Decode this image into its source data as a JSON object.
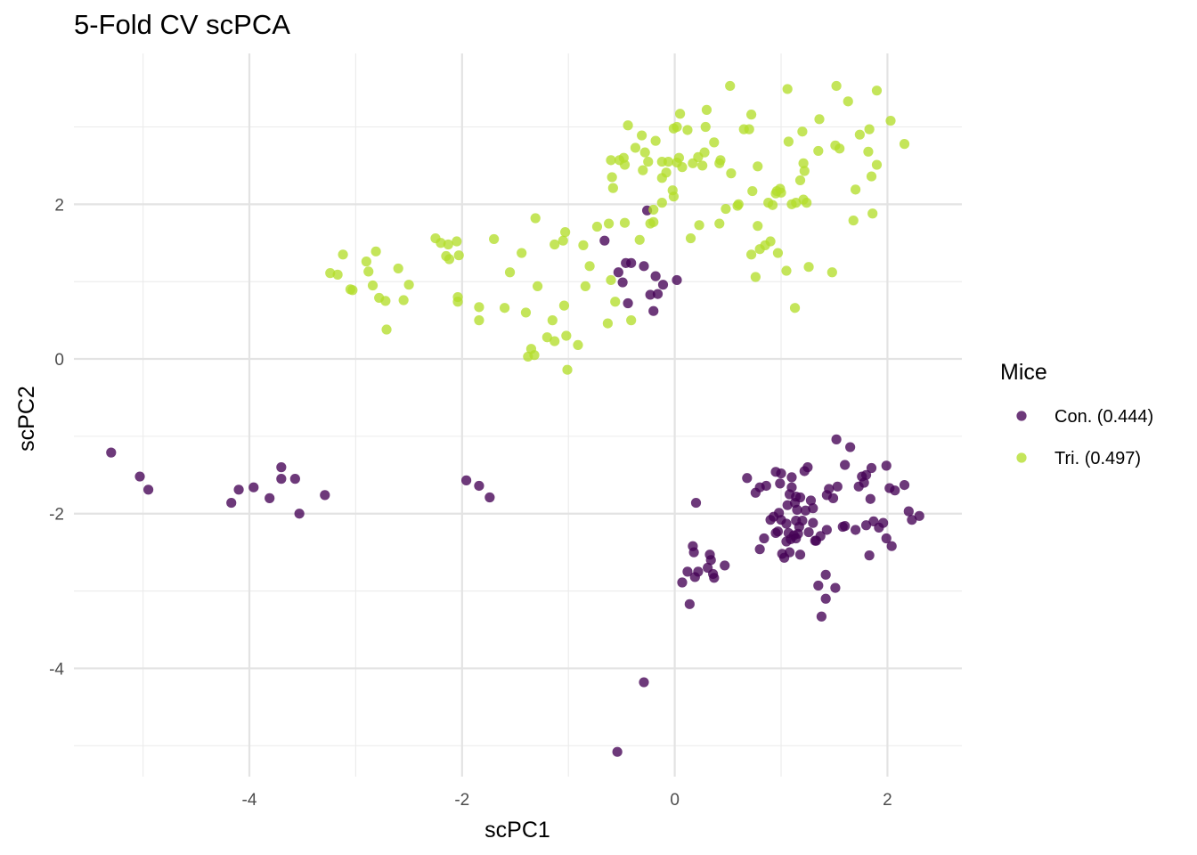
{
  "chart_data": {
    "type": "scatter",
    "title": "5-Fold CV scPCA",
    "xlabel": "scPC1",
    "ylabel": "scPC2",
    "xlim": [
      -5.65,
      2.7
    ],
    "ylim": [
      -5.4,
      3.95
    ],
    "x_ticks": [
      -4,
      -2,
      0,
      2
    ],
    "y_ticks": [
      -4,
      -2,
      0,
      2
    ],
    "x_tick_labels": [
      "-4",
      "-2",
      "0",
      "2"
    ],
    "y_tick_labels": [
      "-4",
      "-2",
      "0",
      "2"
    ],
    "grid": true,
    "legend": {
      "title": "Mice",
      "position": "right"
    },
    "series": [
      {
        "name": "Con. (0.444)",
        "color": "#440154",
        "points": [
          [
            -5.3,
            -1.21
          ],
          [
            -5.03,
            -1.52
          ],
          [
            -4.95,
            -1.69
          ],
          [
            -4.17,
            -1.86
          ],
          [
            -4.1,
            -1.69
          ],
          [
            -3.96,
            -1.66
          ],
          [
            -3.81,
            -1.8
          ],
          [
            -3.7,
            -1.4
          ],
          [
            -3.7,
            -1.55
          ],
          [
            -3.57,
            -1.55
          ],
          [
            -3.53,
            -2.0
          ],
          [
            -3.29,
            -1.76
          ],
          [
            -1.96,
            -1.57
          ],
          [
            -1.84,
            -1.64
          ],
          [
            -1.74,
            -1.79
          ],
          [
            -0.66,
            1.53
          ],
          [
            -0.53,
            1.12
          ],
          [
            -0.49,
            0.99
          ],
          [
            -0.46,
            1.24
          ],
          [
            -0.44,
            0.72
          ],
          [
            -0.41,
            1.24
          ],
          [
            -0.29,
            1.2
          ],
          [
            -0.26,
            1.92
          ],
          [
            -0.23,
            0.83
          ],
          [
            -0.2,
            0.62
          ],
          [
            -0.18,
            1.07
          ],
          [
            -0.16,
            0.84
          ],
          [
            -0.11,
            0.96
          ],
          [
            0.02,
            1.02
          ],
          [
            -0.54,
            -5.08
          ],
          [
            -0.29,
            -4.18
          ],
          [
            0.07,
            -2.89
          ],
          [
            0.12,
            -2.75
          ],
          [
            0.14,
            -3.17
          ],
          [
            0.17,
            -2.42
          ],
          [
            0.18,
            -2.5
          ],
          [
            0.19,
            -2.82
          ],
          [
            0.2,
            -1.86
          ],
          [
            0.22,
            -2.75
          ],
          [
            0.31,
            -2.7
          ],
          [
            0.33,
            -2.53
          ],
          [
            0.34,
            -2.6
          ],
          [
            0.36,
            -2.78
          ],
          [
            0.37,
            -2.83
          ],
          [
            0.47,
            -2.67
          ],
          [
            0.68,
            -1.54
          ],
          [
            0.76,
            -1.73
          ],
          [
            0.8,
            -1.66
          ],
          [
            0.8,
            -2.46
          ],
          [
            0.84,
            -2.32
          ],
          [
            0.86,
            -1.64
          ],
          [
            0.9,
            -2.08
          ],
          [
            0.93,
            -2.04
          ],
          [
            0.95,
            -2.25
          ],
          [
            0.95,
            -1.46
          ],
          [
            0.97,
            -2.23
          ],
          [
            0.98,
            -1.99
          ],
          [
            0.99,
            -1.61
          ],
          [
            1.0,
            -2.08
          ],
          [
            1.0,
            -1.48
          ],
          [
            1.01,
            -2.52
          ],
          [
            1.03,
            -2.57
          ],
          [
            1.05,
            -2.13
          ],
          [
            1.05,
            -2.36
          ],
          [
            1.06,
            -1.89
          ],
          [
            1.07,
            -2.25
          ],
          [
            1.08,
            -2.5
          ],
          [
            1.08,
            -1.75
          ],
          [
            1.09,
            -2.33
          ],
          [
            1.1,
            -1.53
          ],
          [
            1.1,
            -1.66
          ],
          [
            1.12,
            -2.28
          ],
          [
            1.13,
            -1.86
          ],
          [
            1.14,
            -1.78
          ],
          [
            1.14,
            -2.09
          ],
          [
            1.14,
            -2.32
          ],
          [
            1.15,
            -1.95
          ],
          [
            1.16,
            -2.26
          ],
          [
            1.17,
            -2.17
          ],
          [
            1.18,
            -1.79
          ],
          [
            1.18,
            -2.53
          ],
          [
            1.2,
            -2.09
          ],
          [
            1.22,
            -1.45
          ],
          [
            1.23,
            -1.96
          ],
          [
            1.25,
            -1.4
          ],
          [
            1.26,
            -2.24
          ],
          [
            1.28,
            -1.83
          ],
          [
            1.3,
            -2.12
          ],
          [
            1.3,
            -1.93
          ],
          [
            1.32,
            -2.35
          ],
          [
            1.33,
            -2.35
          ],
          [
            1.35,
            -2.93
          ],
          [
            1.37,
            -2.29
          ],
          [
            1.38,
            -3.33
          ],
          [
            1.42,
            -3.1
          ],
          [
            1.42,
            -2.79
          ],
          [
            1.43,
            -2.21
          ],
          [
            1.43,
            -1.76
          ],
          [
            1.45,
            -1.68
          ],
          [
            1.49,
            -1.8
          ],
          [
            1.51,
            -2.96
          ],
          [
            1.52,
            -1.04
          ],
          [
            1.53,
            -1.65
          ],
          [
            1.58,
            -2.17
          ],
          [
            1.6,
            -2.16
          ],
          [
            1.6,
            -1.37
          ],
          [
            1.65,
            -1.14
          ],
          [
            1.7,
            -2.21
          ],
          [
            1.73,
            -1.65
          ],
          [
            1.76,
            -1.52
          ],
          [
            1.78,
            -1.6
          ],
          [
            1.8,
            -2.15
          ],
          [
            1.8,
            -1.5
          ],
          [
            1.83,
            -2.54
          ],
          [
            1.84,
            -1.81
          ],
          [
            1.85,
            -1.41
          ],
          [
            1.87,
            -2.1
          ],
          [
            1.92,
            -2.18
          ],
          [
            1.96,
            -2.12
          ],
          [
            1.99,
            -1.38
          ],
          [
            1.99,
            -2.32
          ],
          [
            2.02,
            -1.67
          ],
          [
            2.04,
            -2.42
          ],
          [
            2.07,
            -1.7
          ],
          [
            2.16,
            -1.63
          ],
          [
            2.2,
            -1.97
          ],
          [
            2.23,
            -2.08
          ],
          [
            2.3,
            -2.03
          ]
        ]
      },
      {
        "name": "Tri. (0.497)",
        "color": "#B4DE2C",
        "points": [
          [
            -3.24,
            1.11
          ],
          [
            -3.17,
            1.09
          ],
          [
            -3.12,
            1.35
          ],
          [
            -3.05,
            0.9
          ],
          [
            -3.03,
            0.89
          ],
          [
            -2.9,
            1.26
          ],
          [
            -2.88,
            1.13
          ],
          [
            -2.84,
            0.95
          ],
          [
            -2.81,
            1.39
          ],
          [
            -2.78,
            0.79
          ],
          [
            -2.72,
            0.75
          ],
          [
            -2.71,
            0.38
          ],
          [
            -2.6,
            1.17
          ],
          [
            -2.55,
            0.76
          ],
          [
            -2.5,
            0.96
          ],
          [
            -2.25,
            1.56
          ],
          [
            -2.2,
            1.5
          ],
          [
            -2.15,
            1.33
          ],
          [
            -2.13,
            1.48
          ],
          [
            -2.12,
            1.29
          ],
          [
            -2.05,
            1.52
          ],
          [
            -2.04,
            0.8
          ],
          [
            -2.04,
            0.74
          ],
          [
            -2.03,
            1.34
          ],
          [
            -1.84,
            0.67
          ],
          [
            -1.84,
            0.5
          ],
          [
            -1.7,
            1.55
          ],
          [
            -1.6,
            0.66
          ],
          [
            -1.55,
            1.12
          ],
          [
            -1.44,
            1.37
          ],
          [
            -1.4,
            0.6
          ],
          [
            -1.38,
            0.03
          ],
          [
            -1.35,
            0.13
          ],
          [
            -1.32,
            0.05
          ],
          [
            -1.31,
            1.82
          ],
          [
            -1.29,
            0.94
          ],
          [
            -1.2,
            0.28
          ],
          [
            -1.15,
            0.5
          ],
          [
            -1.13,
            0.23
          ],
          [
            -1.13,
            1.48
          ],
          [
            -1.05,
            1.53
          ],
          [
            -1.04,
            0.69
          ],
          [
            -1.03,
            1.64
          ],
          [
            -1.02,
            0.3
          ],
          [
            -1.01,
            -0.14
          ],
          [
            -0.91,
            0.18
          ],
          [
            -0.86,
            1.47
          ],
          [
            -0.84,
            0.94
          ],
          [
            -0.8,
            1.2
          ],
          [
            -0.73,
            1.71
          ],
          [
            -0.63,
            0.46
          ],
          [
            -0.62,
            1.75
          ],
          [
            -0.6,
            1.02
          ],
          [
            -0.56,
            0.74
          ],
          [
            -0.47,
            1.76
          ],
          [
            -0.41,
            0.5
          ],
          [
            -0.33,
            1.54
          ],
          [
            -0.31,
            2.89
          ],
          [
            -0.28,
            2.67
          ],
          [
            -0.23,
            1.75
          ],
          [
            -0.2,
            1.77
          ],
          [
            -0.18,
            2.82
          ],
          [
            -0.12,
            2.34
          ],
          [
            -0.12,
            2.55
          ],
          [
            -0.08,
            2.41
          ],
          [
            -0.06,
            2.55
          ],
          [
            -0.02,
            2.18
          ],
          [
            -0.01,
            2.1
          ],
          [
            0.02,
            2.54
          ],
          [
            0.04,
            2.6
          ],
          [
            0.07,
            2.48
          ],
          [
            0.12,
            2.96
          ],
          [
            0.15,
            1.56
          ],
          [
            0.17,
            2.53
          ],
          [
            0.22,
            2.61
          ],
          [
            0.23,
            1.73
          ],
          [
            0.28,
            2.67
          ],
          [
            0.29,
            3.0
          ],
          [
            0.3,
            3.22
          ],
          [
            0.37,
            2.8
          ],
          [
            0.42,
            1.75
          ],
          [
            0.42,
            2.53
          ],
          [
            0.43,
            2.57
          ],
          [
            0.48,
            1.94
          ],
          [
            0.52,
            3.53
          ],
          [
            0.6,
            2.0
          ],
          [
            0.65,
            2.97
          ],
          [
            0.7,
            2.97
          ],
          [
            0.72,
            3.16
          ],
          [
            0.73,
            2.17
          ],
          [
            0.78,
            2.49
          ],
          [
            -0.48,
            2.6
          ],
          [
            -0.6,
            2.57
          ],
          [
            -0.59,
            2.35
          ],
          [
            -0.58,
            2.21
          ],
          [
            -0.52,
            2.57
          ],
          [
            -0.47,
            2.51
          ],
          [
            -0.44,
            3.02
          ],
          [
            -0.37,
            2.73
          ],
          [
            -0.3,
            2.44
          ],
          [
            -0.25,
            2.55
          ],
          [
            -0.2,
            1.93
          ],
          [
            -0.12,
            2.02
          ],
          [
            -0.01,
            2.98
          ],
          [
            0.02,
            3.0
          ],
          [
            0.05,
            3.17
          ],
          [
            0.26,
            2.5
          ],
          [
            0.53,
            2.4
          ],
          [
            0.59,
            1.98
          ],
          [
            0.72,
            1.35
          ],
          [
            0.76,
            1.06
          ],
          [
            0.78,
            1.72
          ],
          [
            0.8,
            1.42
          ],
          [
            0.85,
            1.47
          ],
          [
            0.88,
            2.02
          ],
          [
            0.9,
            1.52
          ],
          [
            0.92,
            1.99
          ],
          [
            0.95,
            2.14
          ],
          [
            0.96,
            2.17
          ],
          [
            0.97,
            1.37
          ],
          [
            0.99,
            2.2
          ],
          [
            1.0,
            2.15
          ],
          [
            1.05,
            1.14
          ],
          [
            1.06,
            3.49
          ],
          [
            1.07,
            2.81
          ],
          [
            1.1,
            2.0
          ],
          [
            1.13,
            0.66
          ],
          [
            1.14,
            2.02
          ],
          [
            1.18,
            2.31
          ],
          [
            1.2,
            2.94
          ],
          [
            1.21,
            2.06
          ],
          [
            1.21,
            2.53
          ],
          [
            1.22,
            2.43
          ],
          [
            1.24,
            2.02
          ],
          [
            1.26,
            1.19
          ],
          [
            1.35,
            2.69
          ],
          [
            1.36,
            3.1
          ],
          [
            1.48,
            1.12
          ],
          [
            1.51,
            2.76
          ],
          [
            1.52,
            3.53
          ],
          [
            1.55,
            2.72
          ],
          [
            1.63,
            3.33
          ],
          [
            1.68,
            1.79
          ],
          [
            1.7,
            2.19
          ],
          [
            1.74,
            2.9
          ],
          [
            1.82,
            2.68
          ],
          [
            1.83,
            2.97
          ],
          [
            1.85,
            2.36
          ],
          [
            1.86,
            1.88
          ],
          [
            1.9,
            2.51
          ],
          [
            1.9,
            3.47
          ],
          [
            2.03,
            3.08
          ],
          [
            2.16,
            2.78
          ]
        ]
      }
    ]
  }
}
